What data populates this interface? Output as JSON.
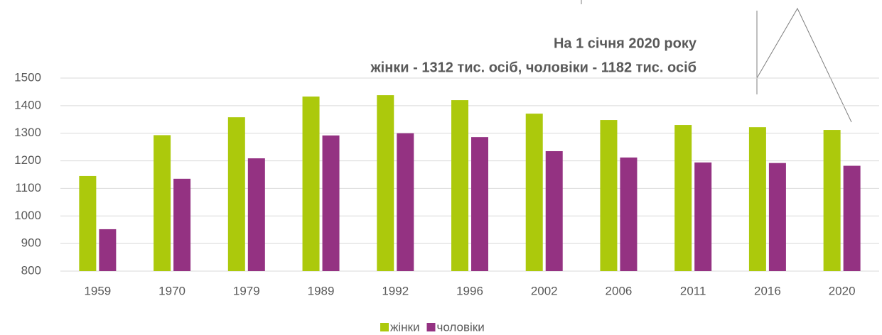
{
  "chart_data": {
    "type": "bar",
    "annotations": [
      "На 1 січня 2020 року",
      "жінки - 1312 тис. осіб, чоловіки - 1182 тис. осіб"
    ],
    "categories": [
      "1959",
      "1970",
      "1979",
      "1989",
      "1992",
      "1996",
      "2002",
      "2006",
      "2011",
      "2016",
      "2020"
    ],
    "series": [
      {
        "name": "жінки",
        "color": "#acc90c",
        "values": [
          1145,
          1293,
          1358,
          1433,
          1438,
          1420,
          1371,
          1348,
          1330,
          1322,
          1312
        ]
      },
      {
        "name": "чоловіки",
        "color": "#943282",
        "values": [
          952,
          1135,
          1209,
          1292,
          1300,
          1286,
          1235,
          1212,
          1194,
          1192,
          1182
        ]
      }
    ],
    "ylim": [
      800,
      1500
    ],
    "yticks": [
      800,
      900,
      1000,
      1100,
      1200,
      1300,
      1400,
      1500
    ],
    "grid": true,
    "legend": "bottom"
  }
}
